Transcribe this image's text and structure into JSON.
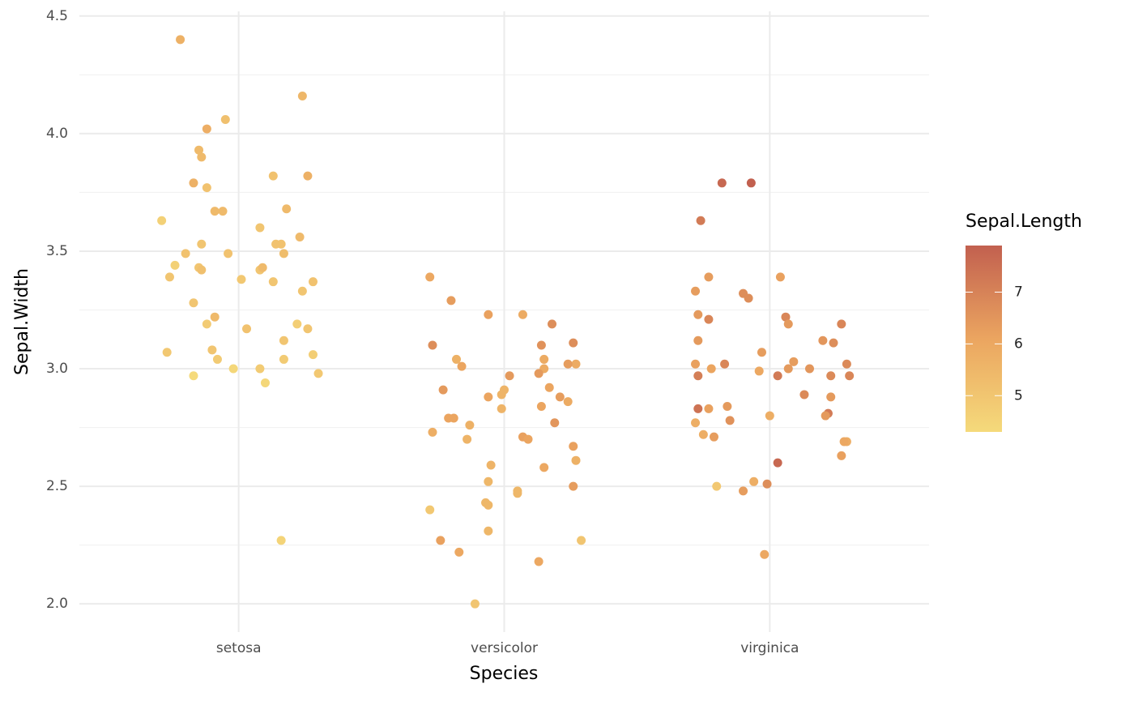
{
  "chart_data": {
    "type": "scatter",
    "x_label": "Species",
    "y_label": "Sepal.Width",
    "color_label": "Sepal.Length",
    "xlim": [
      0.4,
      3.6
    ],
    "ylim": [
      1.88,
      4.52
    ],
    "xticks": [
      {
        "value": 1,
        "label": "setosa"
      },
      {
        "value": 2,
        "label": "versicolor"
      },
      {
        "value": 3,
        "label": "virginica"
      }
    ],
    "yticks": [
      {
        "value": 2,
        "label": "2.0"
      },
      2.5,
      {
        "value": 3,
        "label": "3.0"
      },
      3.5,
      {
        "value": 4,
        "label": "4.0"
      },
      4.5
    ],
    "yminorticks": [
      2.25,
      2.75,
      3.25,
      3.75,
      4.25
    ],
    "grid": true,
    "clim": [
      4.3,
      7.9
    ],
    "cticks": [
      5,
      6,
      7
    ],
    "colorscale": [
      "#F5DA7B",
      "#EBA560",
      "#C2604F"
    ],
    "x": [
      0.78,
      1.24,
      0.95,
      0.88,
      0.85,
      0.86,
      1.13,
      1.26,
      0.83,
      0.88,
      0.91,
      0.94,
      1.18,
      0.71,
      1.08,
      1.23,
      1.14,
      1.16,
      0.86,
      0.8,
      0.96,
      1.17,
      0.76,
      1.08,
      1.09,
      0.85,
      0.86,
      0.74,
      1.01,
      1.13,
      1.28,
      1.24,
      0.83,
      0.91,
      0.88,
      1.22,
      1.03,
      1.26,
      1.17,
      0.9,
      0.73,
      1.28,
      0.92,
      1.17,
      0.98,
      1.08,
      1.3,
      0.83,
      1.1,
      1.16,
      1.72,
      1.8,
      1.94,
      2.07,
      2.18,
      1.73,
      2.14,
      2.26,
      1.82,
      2.15,
      1.84,
      2.27,
      2.24,
      2.15,
      2.02,
      2.13,
      1.77,
      2.17,
      2.0,
      1.99,
      1.94,
      2.21,
      2.14,
      2.24,
      1.79,
      1.81,
      2.19,
      1.87,
      1.99,
      1.73,
      2.07,
      2.09,
      1.86,
      2.26,
      2.27,
      1.95,
      2.15,
      1.94,
      2.26,
      2.05,
      2.05,
      1.93,
      1.94,
      1.72,
      1.94,
      1.76,
      2.29,
      1.83,
      2.13,
      1.89,
      2.82,
      2.93,
      2.74,
      2.77,
      3.04,
      2.72,
      2.9,
      2.92,
      2.73,
      3.06,
      2.77,
      3.07,
      3.27,
      2.73,
      3.2,
      3.24,
      2.97,
      3.09,
      2.72,
      2.83,
      3.29,
      2.78,
      3.15,
      3.07,
      2.96,
      2.73,
      3.03,
      3.23,
      3.3,
      3.13,
      3.23,
      2.73,
      2.77,
      2.84,
      3.22,
      3.21,
      3.0,
      2.72,
      2.85,
      2.75,
      2.79,
      3.29,
      3.28,
      3.27,
      3.03,
      2.94,
      2.99,
      2.8,
      2.9,
      2.98
    ],
    "y": [
      4.4,
      4.16,
      4.06,
      4.02,
      3.93,
      3.9,
      3.82,
      3.82,
      3.79,
      3.77,
      3.67,
      3.67,
      3.68,
      3.63,
      3.6,
      3.56,
      3.53,
      3.53,
      3.53,
      3.49,
      3.49,
      3.49,
      3.44,
      3.42,
      3.43,
      3.43,
      3.42,
      3.39,
      3.38,
      3.37,
      3.37,
      3.33,
      3.28,
      3.22,
      3.19,
      3.19,
      3.17,
      3.17,
      3.12,
      3.08,
      3.07,
      3.06,
      3.04,
      3.04,
      3.0,
      3.0,
      2.98,
      2.97,
      2.94,
      2.27,
      3.39,
      3.29,
      3.23,
      3.23,
      3.19,
      3.1,
      3.1,
      3.11,
      3.04,
      3.04,
      3.01,
      3.02,
      3.02,
      3.0,
      2.97,
      2.98,
      2.91,
      2.92,
      2.91,
      2.89,
      2.88,
      2.88,
      2.84,
      2.86,
      2.79,
      2.79,
      2.77,
      2.76,
      2.83,
      2.73,
      2.71,
      2.7,
      2.7,
      2.67,
      2.61,
      2.59,
      2.58,
      2.52,
      2.5,
      2.48,
      2.47,
      2.43,
      2.42,
      2.4,
      2.31,
      2.27,
      2.27,
      2.22,
      2.18,
      2.0,
      3.79,
      3.79,
      3.63,
      3.39,
      3.39,
      3.33,
      3.32,
      3.3,
      3.23,
      3.22,
      3.21,
      3.19,
      3.19,
      3.12,
      3.12,
      3.11,
      3.07,
      3.03,
      3.02,
      3.02,
      3.02,
      3.0,
      3.0,
      3.0,
      2.99,
      2.97,
      2.97,
      2.97,
      2.97,
      2.89,
      2.88,
      2.83,
      2.83,
      2.84,
      2.81,
      2.8,
      2.8,
      2.77,
      2.78,
      2.72,
      2.71,
      2.69,
      2.69,
      2.63,
      2.6,
      2.52,
      2.51,
      2.5,
      2.48,
      2.21
    ],
    "color_values": [
      5.7,
      5.5,
      5.2,
      5.8,
      5.4,
      5.4,
      5.1,
      5.7,
      5.7,
      5.1,
      5.4,
      5.4,
      5.4,
      4.6,
      5.0,
      5.4,
      5.1,
      5.1,
      5.0,
      5.1,
      5.1,
      5.3,
      4.6,
      5.0,
      5.4,
      5.0,
      5.2,
      5.0,
      4.9,
      5.0,
      5.1,
      5.0,
      5.0,
      5.4,
      4.8,
      4.7,
      5.1,
      5.0,
      5.0,
      5.0,
      4.9,
      4.7,
      4.8,
      4.8,
      4.4,
      4.8,
      4.9,
      4.3,
      4.4,
      4.5,
      6.0,
      6.3,
      6.2,
      5.9,
      6.7,
      6.7,
      6.6,
      6.7,
      5.7,
      5.9,
      6.1,
      5.9,
      6.3,
      5.9,
      6.4,
      6.4,
      6.4,
      6.1,
      5.6,
      5.6,
      6.1,
      6.3,
      6.1,
      5.9,
      6.1,
      6.1,
      6.5,
      5.7,
      5.6,
      5.8,
      6.2,
      6.1,
      5.6,
      6.2,
      5.7,
      5.6,
      6.0,
      5.5,
      6.3,
      5.5,
      5.5,
      5.5,
      5.5,
      4.9,
      5.5,
      6.2,
      5.0,
      6.0,
      6.0,
      5.0,
      7.7,
      7.9,
      7.2,
      6.3,
      6.2,
      6.3,
      6.7,
      6.7,
      6.4,
      6.9,
      6.9,
      6.4,
      6.9,
      6.4,
      6.5,
      6.7,
      6.3,
      6.3,
      6.2,
      6.9,
      6.8,
      6.1,
      6.5,
      6.4,
      6.0,
      7.1,
      7.2,
      6.8,
      6.9,
      6.8,
      6.4,
      7.4,
      6.2,
      6.4,
      7.2,
      6.4,
      5.8,
      5.8,
      6.6,
      5.8,
      6.3,
      5.8,
      6.0,
      6.2,
      7.7,
      5.8,
      6.7,
      4.9,
      6.3,
      6.0
    ]
  }
}
